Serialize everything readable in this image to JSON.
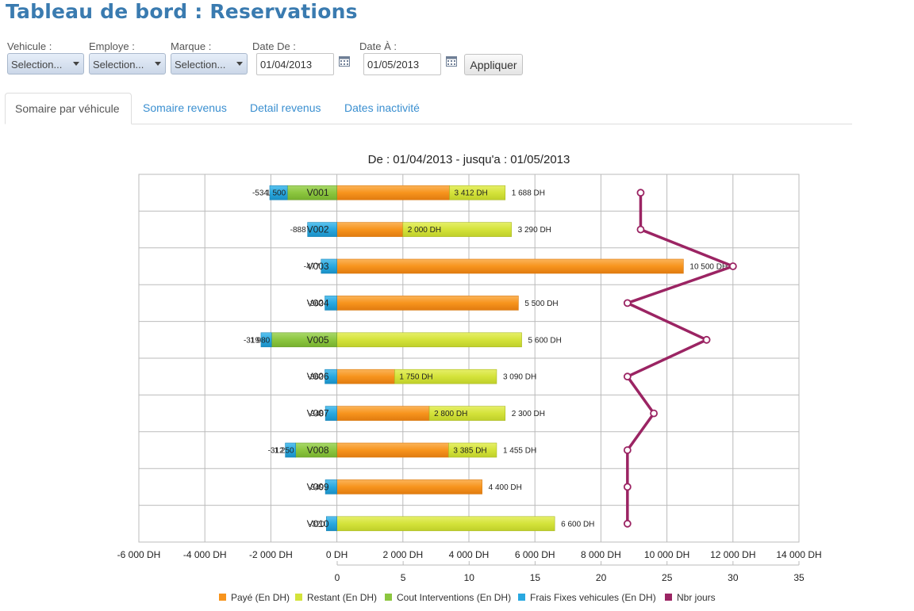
{
  "title": "Tableau de bord : Reservations",
  "filters": {
    "vehicule": {
      "label": "Vehicule :",
      "value": "Selection..."
    },
    "employe": {
      "label": "Employe :",
      "value": "Selection..."
    },
    "marque": {
      "label": "Marque :",
      "value": "Selection..."
    },
    "date_de": {
      "label": "Date De :",
      "value": "01/04/2013"
    },
    "date_a": {
      "label": "Date À :",
      "value": "01/05/2013"
    },
    "apply_label": "Appliquer",
    "calendar_icon": "calendar-icon"
  },
  "tabs": [
    {
      "label": "Somaire par véhicule",
      "active": true
    },
    {
      "label": "Somaire revenus",
      "active": false
    },
    {
      "label": "Detail revenus",
      "active": false
    },
    {
      "label": "Dates inactivité",
      "active": false
    }
  ],
  "colors": {
    "paye": "#f7941d",
    "restant": "#d4e33a",
    "cout": "#8cc63f",
    "frais": "#29a8e0",
    "jours": "#9b2463",
    "title": "#3a7bb0",
    "tab": "#3a8fd0"
  },
  "chart_data": {
    "type": "bar",
    "orientation": "horizontal",
    "stacked": true,
    "title": "De : 01/04/2013 - jusqu'a : 01/05/2013",
    "categories": [
      "V001",
      "V002",
      "V003",
      "V004",
      "V005",
      "V006",
      "V007",
      "V008",
      "V009",
      "V010"
    ],
    "series": [
      {
        "name": "Payé (En DH)",
        "values": [
          3412,
          2000,
          10500,
          5500,
          0,
          1750,
          2800,
          3385,
          4400,
          0
        ]
      },
      {
        "name": "Restant (En DH)",
        "values": [
          1688,
          3290,
          0,
          0,
          5600,
          3090,
          2300,
          1455,
          0,
          6600
        ]
      },
      {
        "name": "Cout Interventions (En DH)",
        "values": [
          -1500,
          0,
          0,
          0,
          -1980,
          0,
          0,
          -1250,
          0,
          0
        ]
      },
      {
        "name": "Frais Fixes vehicules (En DH)",
        "values": [
          -534,
          -888,
          -477,
          -362,
          -319,
          -362,
          -348,
          -312,
          -349,
          -320
        ]
      },
      {
        "name": "Nbr jours",
        "type": "line",
        "values": [
          23,
          23,
          30,
          22,
          28,
          22,
          24,
          22,
          22,
          22
        ]
      }
    ],
    "bar_labels": [
      [
        "-534",
        "1 500",
        "3 412 DH",
        "1 688 DH"
      ],
      [
        "-888",
        "",
        "2 000 DH",
        "3 290 DH"
      ],
      [
        "-477",
        "",
        "",
        "10 500 DH"
      ],
      [
        "-362",
        "",
        "",
        "5 500 DH"
      ],
      [
        "-319",
        "1 980",
        "",
        "5 600 DH"
      ],
      [
        "-362",
        "",
        "1 750 DH",
        "3 090 DH"
      ],
      [
        "-348",
        "",
        "2 800 DH",
        "2 300 DH"
      ],
      [
        "-312",
        "1 250",
        "3 385 DH",
        "1 455 DH"
      ],
      [
        "-349",
        "",
        "",
        "4 400 DH"
      ],
      [
        "-320",
        "",
        "",
        "6 600 DH"
      ]
    ],
    "x_ticks": [
      "-6 000 DH",
      "-4 000 DH",
      "-2 000 DH",
      "0 DH",
      "2 000 DH",
      "4 000 DH",
      "6 000 DH",
      "8 000 DH",
      "10 000 DH",
      "12 000 DH",
      "14 000 DH"
    ],
    "xlim": [
      -6000,
      14000
    ],
    "x2_ticks": [
      "0",
      "5",
      "10",
      "15",
      "20",
      "25",
      "30",
      "35"
    ],
    "x2lim": [
      0,
      35
    ],
    "grid": true,
    "legend_position": "bottom"
  }
}
